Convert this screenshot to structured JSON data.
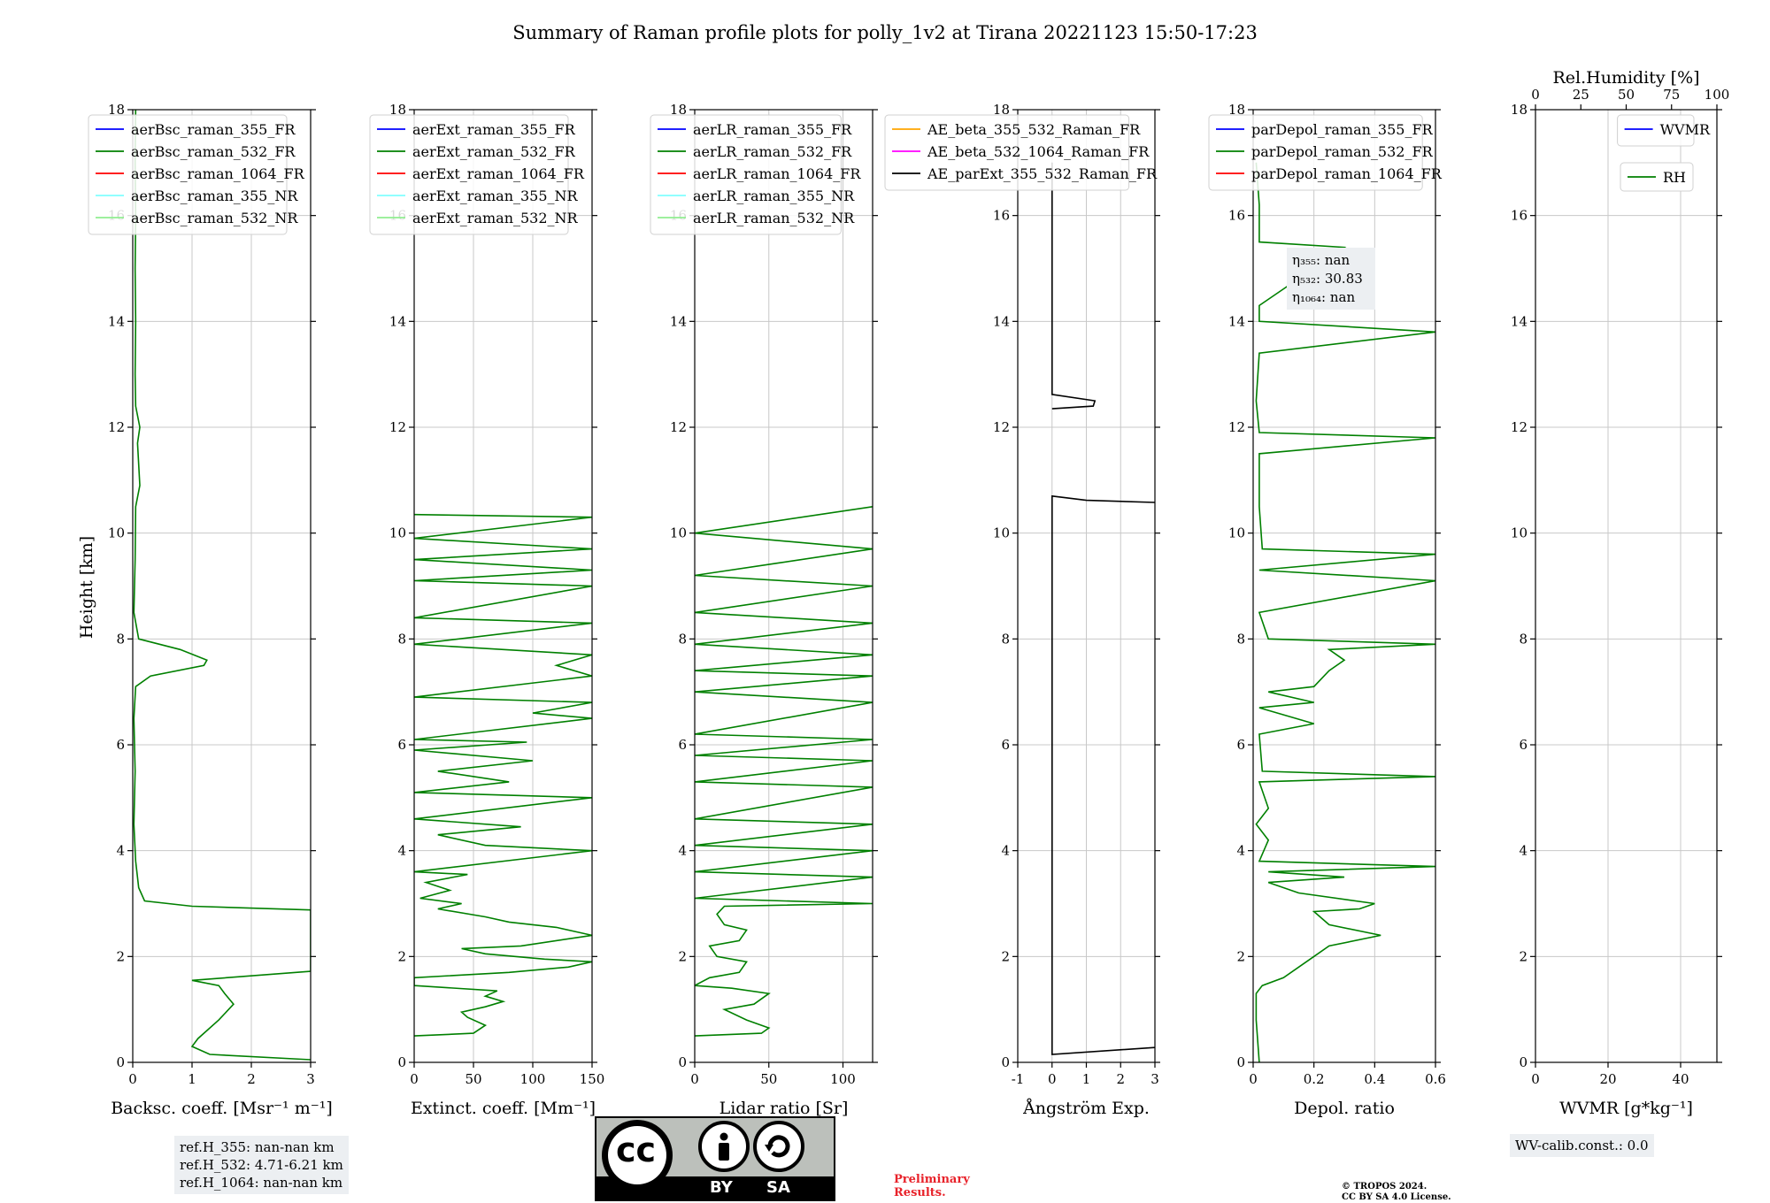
{
  "figure": {
    "title": "Summary of Raman profile plots for polly_1v2 at Tirana 20221123 15:50-17:23",
    "ylabel": "Height [km]",
    "ylim": [
      0,
      18
    ],
    "yticks": [
      0,
      2,
      4,
      6,
      8,
      10,
      12,
      14,
      16,
      18
    ]
  },
  "chart_data": [
    {
      "type": "line",
      "xlabel": "Backsc. coeff. [Msr⁻¹ m⁻¹]",
      "xlim": [
        0,
        3
      ],
      "xticks": [
        0,
        1,
        2,
        3
      ],
      "grid": true,
      "legend": [
        "aerBsc_raman_355_FR",
        "aerBsc_raman_532_FR",
        "aerBsc_raman_1064_FR",
        "aerBsc_raman_355_NR",
        "aerBsc_raman_532_NR"
      ],
      "legend_colors": [
        "#0000ff",
        "#008000",
        "#ff0000",
        "#80ffff",
        "#90ee90"
      ],
      "legend_location": "top-left",
      "series": [
        {
          "name": "aerBsc_raman_532_FR",
          "color": "#008000",
          "points": [
            [
              3.0,
              0.05
            ],
            [
              1.3,
              0.15
            ],
            [
              1.0,
              0.3
            ],
            [
              1.1,
              0.45
            ],
            [
              1.45,
              0.8
            ],
            [
              1.7,
              1.1
            ],
            [
              1.55,
              1.3
            ],
            [
              1.45,
              1.45
            ],
            [
              1.0,
              1.55
            ],
            [
              3.0,
              1.72
            ],
            [
              3.0,
              2.88
            ],
            [
              1.0,
              2.95
            ],
            [
              0.2,
              3.05
            ],
            [
              0.1,
              3.3
            ],
            [
              0.05,
              3.8
            ],
            [
              0.02,
              4.5
            ],
            [
              0.04,
              5.5
            ],
            [
              0.02,
              6.5
            ],
            [
              0.05,
              7.1
            ],
            [
              0.3,
              7.3
            ],
            [
              1.2,
              7.5
            ],
            [
              1.25,
              7.6
            ],
            [
              0.8,
              7.8
            ],
            [
              0.1,
              8.0
            ],
            [
              0.02,
              8.5
            ],
            [
              0.04,
              9.5
            ],
            [
              0.05,
              10.5
            ],
            [
              0.12,
              10.9
            ],
            [
              0.1,
              11.3
            ],
            [
              0.08,
              11.7
            ],
            [
              0.12,
              12.0
            ],
            [
              0.05,
              12.4
            ],
            [
              0.04,
              13.0
            ],
            [
              0.05,
              14.0
            ],
            [
              0.04,
              15.0
            ],
            [
              0.05,
              16.0
            ],
            [
              0.04,
              17.0
            ],
            [
              0.05,
              18.0
            ]
          ]
        }
      ]
    },
    {
      "type": "line",
      "xlabel": "Extinct. coeff. [Mm⁻¹]",
      "xlim": [
        0,
        150
      ],
      "xticks": [
        0,
        50,
        100,
        150
      ],
      "grid": true,
      "legend": [
        "aerExt_raman_355_FR",
        "aerExt_raman_532_FR",
        "aerExt_raman_1064_FR",
        "aerExt_raman_355_NR",
        "aerExt_raman_532_NR"
      ],
      "legend_colors": [
        "#0000ff",
        "#008000",
        "#ff0000",
        "#80ffff",
        "#90ee90"
      ],
      "legend_location": "top-left",
      "series": [
        {
          "name": "aerExt_raman_532_FR",
          "color": "#008000",
          "points": [
            [
              0,
              0.5
            ],
            [
              50,
              0.55
            ],
            [
              60,
              0.7
            ],
            [
              45,
              0.85
            ],
            [
              40,
              0.95
            ],
            [
              60,
              1.05
            ],
            [
              75,
              1.15
            ],
            [
              60,
              1.25
            ],
            [
              70,
              1.35
            ],
            [
              0,
              1.45
            ],
            [
              0,
              1.6
            ],
            [
              80,
              1.7
            ],
            [
              130,
              1.8
            ],
            [
              150,
              1.9
            ],
            [
              110,
              1.95
            ],
            [
              60,
              2.05
            ],
            [
              40,
              2.15
            ],
            [
              90,
              2.2
            ],
            [
              150,
              2.4
            ],
            [
              120,
              2.55
            ],
            [
              80,
              2.65
            ],
            [
              60,
              2.75
            ],
            [
              20,
              2.9
            ],
            [
              40,
              3.0
            ],
            [
              5,
              3.1
            ],
            [
              30,
              3.25
            ],
            [
              10,
              3.4
            ],
            [
              45,
              3.55
            ],
            [
              0,
              3.6
            ],
            [
              150,
              4.0
            ],
            [
              60,
              4.1
            ],
            [
              20,
              4.3
            ],
            [
              90,
              4.45
            ],
            [
              0,
              4.6
            ],
            [
              150,
              5.0
            ],
            [
              0,
              5.1
            ],
            [
              80,
              5.3
            ],
            [
              20,
              5.5
            ],
            [
              100,
              5.7
            ],
            [
              0,
              5.9
            ],
            [
              95,
              6.05
            ],
            [
              0,
              6.1
            ],
            [
              150,
              6.5
            ],
            [
              100,
              6.6
            ],
            [
              150,
              6.8
            ],
            [
              0,
              6.9
            ],
            [
              150,
              7.3
            ],
            [
              120,
              7.5
            ],
            [
              150,
              7.7
            ],
            [
              0,
              7.9
            ],
            [
              150,
              8.3
            ],
            [
              0,
              8.4
            ],
            [
              150,
              9.0
            ],
            [
              0,
              9.1
            ],
            [
              150,
              9.3
            ],
            [
              0,
              9.5
            ],
            [
              150,
              9.7
            ],
            [
              0,
              9.9
            ],
            [
              150,
              10.3
            ],
            [
              0,
              10.35
            ]
          ]
        }
      ]
    },
    {
      "type": "line",
      "xlabel": "Lidar ratio [Sr]",
      "xlim": [
        0,
        120
      ],
      "xticks": [
        0,
        50,
        100
      ],
      "grid": true,
      "legend": [
        "aerLR_raman_355_FR",
        "aerLR_raman_532_FR",
        "aerLR_raman_1064_FR",
        "aerLR_raman_355_NR",
        "aerLR_raman_532_NR"
      ],
      "legend_colors": [
        "#0000ff",
        "#008000",
        "#ff0000",
        "#80ffff",
        "#90ee90"
      ],
      "legend_location": "top-left",
      "series": [
        {
          "name": "aerLR_raman_532_FR",
          "color": "#008000",
          "points": [
            [
              0,
              0.5
            ],
            [
              45,
              0.55
            ],
            [
              50,
              0.65
            ],
            [
              35,
              0.8
            ],
            [
              20,
              1.0
            ],
            [
              40,
              1.1
            ],
            [
              50,
              1.3
            ],
            [
              25,
              1.4
            ],
            [
              0,
              1.45
            ],
            [
              10,
              1.6
            ],
            [
              30,
              1.7
            ],
            [
              35,
              1.9
            ],
            [
              15,
              2.0
            ],
            [
              10,
              2.2
            ],
            [
              30,
              2.3
            ],
            [
              35,
              2.5
            ],
            [
              20,
              2.6
            ],
            [
              15,
              2.8
            ],
            [
              20,
              2.95
            ],
            [
              120,
              3.0
            ],
            [
              0,
              3.1
            ],
            [
              120,
              3.5
            ],
            [
              0,
              3.6
            ],
            [
              120,
              4.0
            ],
            [
              0,
              4.1
            ],
            [
              120,
              4.5
            ],
            [
              0,
              4.6
            ],
            [
              120,
              5.2
            ],
            [
              0,
              5.3
            ],
            [
              120,
              5.7
            ],
            [
              0,
              5.8
            ],
            [
              120,
              6.1
            ],
            [
              0,
              6.2
            ],
            [
              120,
              6.8
            ],
            [
              0,
              7.0
            ],
            [
              120,
              7.3
            ],
            [
              0,
              7.4
            ],
            [
              120,
              7.7
            ],
            [
              0,
              7.9
            ],
            [
              120,
              8.3
            ],
            [
              0,
              8.5
            ],
            [
              120,
              9.0
            ],
            [
              0,
              9.2
            ],
            [
              120,
              9.7
            ],
            [
              0,
              10.0
            ],
            [
              120,
              10.5
            ]
          ]
        }
      ]
    },
    {
      "type": "line",
      "xlabel": "Ångström Exp.",
      "xlim": [
        -1,
        3
      ],
      "xticks": [
        -1,
        0,
        1,
        2,
        3
      ],
      "grid": true,
      "legend": [
        "AE_beta_355_532_Raman_FR",
        "AE_beta_532_1064_Raman_FR",
        "AE_parExt_355_532_Raman_FR"
      ],
      "legend_colors": [
        "#ffa500",
        "#ff00ff",
        "#000000"
      ],
      "legend_location": "top-left",
      "series": [
        {
          "name": "AE_parExt_355_532_Raman_FR",
          "color": "#000000",
          "points": [
            [
              3.0,
              0.28
            ],
            [
              0.0,
              0.15
            ],
            [
              0.0,
              10.7
            ],
            [
              1.0,
              10.62
            ],
            [
              3.0,
              10.58
            ]
          ]
        },
        {
          "name": "AE_parExt_355_532_Raman_FR_upper",
          "color": "#000000",
          "points": [
            [
              0.0,
              12.35
            ],
            [
              1.2,
              12.4
            ],
            [
              1.25,
              12.5
            ],
            [
              0.0,
              12.62
            ],
            [
              0.0,
              17.0
            ]
          ]
        }
      ]
    },
    {
      "type": "line",
      "xlabel": "Depol. ratio",
      "xlim": [
        0.0,
        0.6
      ],
      "xticks": [
        0.0,
        0.2,
        0.4,
        0.6
      ],
      "grid": true,
      "legend": [
        "parDepol_raman_355_FR",
        "parDepol_raman_532_FR",
        "parDepol_raman_1064_FR"
      ],
      "legend_colors": [
        "#0000ff",
        "#008000",
        "#ff0000"
      ],
      "legend_location": "top-left",
      "annotation": [
        "η₃₅₅: nan",
        "η₅₃₂: 30.83",
        "η₁₀₆₄: nan"
      ],
      "series": [
        {
          "name": "parDepol_raman_532_FR",
          "color": "#008000",
          "points": [
            [
              0.02,
              0.0
            ],
            [
              0.01,
              0.8
            ],
            [
              0.01,
              1.3
            ],
            [
              0.03,
              1.45
            ],
            [
              0.1,
              1.6
            ],
            [
              0.2,
              2.0
            ],
            [
              0.25,
              2.2
            ],
            [
              0.42,
              2.4
            ],
            [
              0.25,
              2.6
            ],
            [
              0.2,
              2.85
            ],
            [
              0.35,
              2.9
            ],
            [
              0.4,
              3.0
            ],
            [
              0.15,
              3.2
            ],
            [
              0.05,
              3.4
            ],
            [
              0.3,
              3.5
            ],
            [
              0.05,
              3.6
            ],
            [
              0.6,
              3.7
            ],
            [
              0.02,
              3.8
            ],
            [
              0.05,
              4.2
            ],
            [
              0.01,
              4.5
            ],
            [
              0.05,
              4.8
            ],
            [
              0.02,
              5.3
            ],
            [
              0.6,
              5.4
            ],
            [
              0.03,
              5.5
            ],
            [
              0.02,
              6.2
            ],
            [
              0.2,
              6.4
            ],
            [
              0.02,
              6.7
            ],
            [
              0.2,
              6.8
            ],
            [
              0.05,
              7.0
            ],
            [
              0.2,
              7.1
            ],
            [
              0.25,
              7.4
            ],
            [
              0.3,
              7.6
            ],
            [
              0.25,
              7.8
            ],
            [
              0.6,
              7.9
            ],
            [
              0.05,
              8.0
            ],
            [
              0.02,
              8.5
            ],
            [
              0.6,
              9.1
            ],
            [
              0.02,
              9.3
            ],
            [
              0.6,
              9.6
            ],
            [
              0.03,
              9.7
            ],
            [
              0.02,
              10.5
            ],
            [
              0.02,
              11.5
            ],
            [
              0.6,
              11.8
            ],
            [
              0.02,
              11.9
            ],
            [
              0.01,
              12.5
            ],
            [
              0.02,
              13.4
            ],
            [
              0.6,
              13.8
            ],
            [
              0.02,
              14.0
            ],
            [
              0.02,
              14.3
            ],
            [
              0.3,
              15.4
            ],
            [
              0.02,
              15.5
            ],
            [
              0.02,
              16.2
            ],
            [
              0.01,
              17.0
            ]
          ]
        }
      ]
    },
    {
      "type": "line",
      "xlabel": "WVMR [g*kg⁻¹]",
      "xlim": [
        0,
        50
      ],
      "xticks": [
        0,
        20,
        40
      ],
      "top_xlabel": "Rel.Humidity [%]",
      "top_xlim": [
        0,
        100
      ],
      "top_xticks": [
        0,
        25,
        50,
        75,
        100
      ],
      "grid": true,
      "legend": [
        "WVMR"
      ],
      "legend_colors": [
        "#0000ff"
      ],
      "legend2": [
        "RH"
      ],
      "legend2_colors": [
        "#008000"
      ],
      "legend_location": "top-right",
      "series": []
    }
  ],
  "footer": {
    "ref_lines": [
      "ref.H_355: nan-nan km",
      "ref.H_532: 4.71-6.21 km",
      "ref.H_1064: nan-nan km"
    ],
    "cc_text": "cc",
    "cc_by": "BY",
    "cc_sa": "SA",
    "preliminary": [
      "Preliminary",
      "Results."
    ],
    "copyright": [
      "© TROPOS 2024.",
      "CC BY SA 4.0 License."
    ],
    "wv_calib": "WV-calib.const.: 0.0"
  }
}
